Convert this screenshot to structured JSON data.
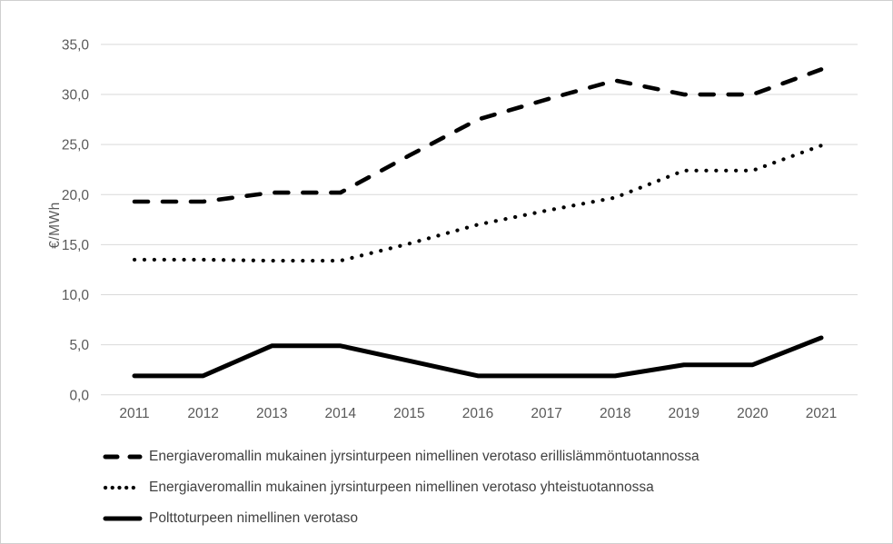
{
  "chart_data": {
    "type": "line",
    "title": "",
    "xlabel": "",
    "ylabel": "€/MWh",
    "x": [
      2011,
      2012,
      2013,
      2014,
      2015,
      2016,
      2017,
      2018,
      2019,
      2020,
      2021
    ],
    "ylim": [
      0,
      35
    ],
    "ytick_step": 5,
    "ytick_labels": [
      "0,0",
      "5,0",
      "10,0",
      "15,0",
      "20,0",
      "25,0",
      "30,0",
      "35,0"
    ],
    "grid": "horizontal-only",
    "legend_position": "bottom-left",
    "gridline_color": "#d9d9d9",
    "axis_text_color": "#595959",
    "legend_text_color": "#404040",
    "line_color": "#000000",
    "series": [
      {
        "name": "Energiaveromallin mukainen jyrsinturpeen nimellinen verotaso erillislämmöntuotannossa",
        "style": "dashed",
        "color": "#000000",
        "values": [
          19.3,
          19.3,
          20.2,
          20.2,
          23.9,
          27.5,
          29.5,
          31.4,
          30.0,
          30.0,
          32.5
        ]
      },
      {
        "name": "Energiaveromallin mukainen jyrsinturpeen nimellinen verotaso yhteistuotannossa",
        "style": "dotted",
        "color": "#000000",
        "values": [
          13.5,
          13.5,
          13.4,
          13.4,
          15.1,
          17.0,
          18.4,
          19.7,
          22.4,
          22.4,
          24.9
        ]
      },
      {
        "name": "Polttoturpeen nimellinen verotaso",
        "style": "solid",
        "color": "#000000",
        "values": [
          1.9,
          1.9,
          4.9,
          4.9,
          3.4,
          1.9,
          1.9,
          1.9,
          3.0,
          3.0,
          5.7
        ]
      }
    ]
  }
}
